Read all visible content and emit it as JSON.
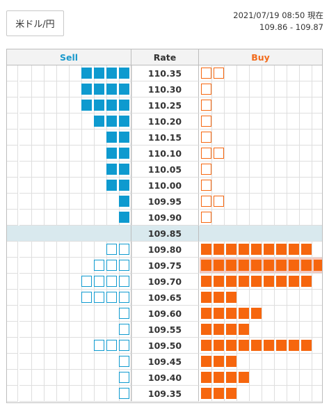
{
  "header": {
    "pair_label": "米ドル/円",
    "timestamp": "2021/07/19 08:50 現在",
    "range": "109.86 - 109.87"
  },
  "board": {
    "sell_label": "Sell",
    "rate_label": "Rate",
    "buy_label": "Buy",
    "rows": [
      {
        "rate": "110.35",
        "sell_filled": 4,
        "sell_outline": 0,
        "buy_filled": 0,
        "buy_outline": 2
      },
      {
        "rate": "110.30",
        "sell_filled": 4,
        "sell_outline": 0,
        "buy_filled": 0,
        "buy_outline": 1
      },
      {
        "rate": "110.25",
        "sell_filled": 4,
        "sell_outline": 0,
        "buy_filled": 0,
        "buy_outline": 1
      },
      {
        "rate": "110.20",
        "sell_filled": 3,
        "sell_outline": 0,
        "buy_filled": 0,
        "buy_outline": 1
      },
      {
        "rate": "110.15",
        "sell_filled": 2,
        "sell_outline": 0,
        "buy_filled": 0,
        "buy_outline": 1
      },
      {
        "rate": "110.10",
        "sell_filled": 2,
        "sell_outline": 0,
        "buy_filled": 0,
        "buy_outline": 2
      },
      {
        "rate": "110.05",
        "sell_filled": 2,
        "sell_outline": 0,
        "buy_filled": 0,
        "buy_outline": 1
      },
      {
        "rate": "110.00",
        "sell_filled": 2,
        "sell_outline": 0,
        "buy_filled": 0,
        "buy_outline": 1
      },
      {
        "rate": "109.95",
        "sell_filled": 1,
        "sell_outline": 0,
        "buy_filled": 0,
        "buy_outline": 2
      },
      {
        "rate": "109.90",
        "sell_filled": 1,
        "sell_outline": 0,
        "buy_filled": 0,
        "buy_outline": 1
      },
      {
        "rate": "109.85",
        "sell_filled": 0,
        "sell_outline": 0,
        "buy_filled": 0,
        "buy_outline": 0,
        "current": true
      },
      {
        "rate": "109.80",
        "sell_filled": 0,
        "sell_outline": 2,
        "buy_filled": 9,
        "buy_outline": 0
      },
      {
        "rate": "109.75",
        "sell_filled": 0,
        "sell_outline": 3,
        "buy_filled": 10,
        "buy_outline": 0,
        "highlight": true
      },
      {
        "rate": "109.70",
        "sell_filled": 0,
        "sell_outline": 4,
        "buy_filled": 9,
        "buy_outline": 0
      },
      {
        "rate": "109.65",
        "sell_filled": 0,
        "sell_outline": 4,
        "buy_filled": 3,
        "buy_outline": 0
      },
      {
        "rate": "109.60",
        "sell_filled": 0,
        "sell_outline": 1,
        "buy_filled": 5,
        "buy_outline": 0
      },
      {
        "rate": "109.55",
        "sell_filled": 0,
        "sell_outline": 1,
        "buy_filled": 4,
        "buy_outline": 0
      },
      {
        "rate": "109.50",
        "sell_filled": 0,
        "sell_outline": 3,
        "buy_filled": 9,
        "buy_outline": 0
      },
      {
        "rate": "109.45",
        "sell_filled": 0,
        "sell_outline": 1,
        "buy_filled": 3,
        "buy_outline": 0
      },
      {
        "rate": "109.40",
        "sell_filled": 0,
        "sell_outline": 1,
        "buy_filled": 4,
        "buy_outline": 0
      },
      {
        "rate": "109.35",
        "sell_filled": 0,
        "sell_outline": 1,
        "buy_filled": 3,
        "buy_outline": 0
      }
    ]
  },
  "colors": {
    "sell": "#0e9acf",
    "buy": "#f6660e",
    "current_row": "#d9e9ee",
    "highlight_row": "#f5c8bd"
  }
}
